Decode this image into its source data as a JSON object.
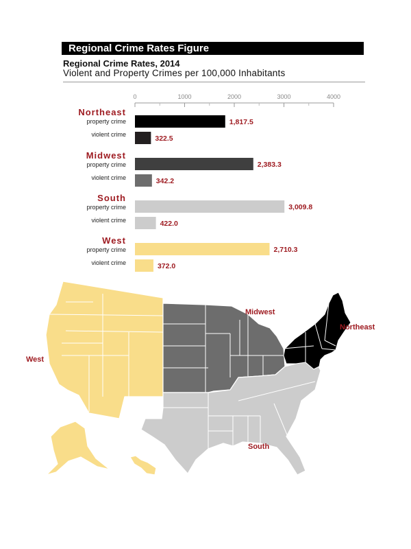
{
  "header": {
    "figure_title": "Regional Crime Rates Figure",
    "chart_title": "Regional Crime Rates, 2014",
    "chart_subtitle": "Violent and Property Crimes per 100,000 Inhabitants"
  },
  "colors": {
    "northeast_property": "#000000",
    "northeast_violent": "#231f20",
    "midwest_property": "#3f3f3f",
    "midwest_violent": "#6d6d6d",
    "south": "#cccccc",
    "west": "#f9dd8a",
    "label_red": "#9e1b21",
    "axis": "#999999"
  },
  "chart_data": {
    "type": "bar",
    "orientation": "horizontal",
    "xlim": [
      0,
      4000
    ],
    "x_ticks": [
      0,
      1000,
      2000,
      3000,
      4000
    ],
    "x_tick_labels": [
      "0",
      "1000",
      "2000",
      "3000",
      "4000"
    ],
    "groups": [
      {
        "region": "Northeast",
        "bars": [
          {
            "label": "property crime",
            "value": 1817.5,
            "value_label": "1,817.5",
            "color": "#000000"
          },
          {
            "label": "violent crime",
            "value": 322.5,
            "value_label": "322.5",
            "color": "#231f20"
          }
        ]
      },
      {
        "region": "Midwest",
        "bars": [
          {
            "label": "property crime",
            "value": 2383.3,
            "value_label": "2,383.3",
            "color": "#3f3f3f"
          },
          {
            "label": "violent crime",
            "value": 342.2,
            "value_label": "342.2",
            "color": "#6d6d6d"
          }
        ]
      },
      {
        "region": "South",
        "bars": [
          {
            "label": "property crime",
            "value": 3009.8,
            "value_label": "3,009.8",
            "color": "#cccccc"
          },
          {
            "label": "violent crime",
            "value": 422.0,
            "value_label": "422.0",
            "color": "#cccccc"
          }
        ]
      },
      {
        "region": "West",
        "bars": [
          {
            "label": "property crime",
            "value": 2710.3,
            "value_label": "2,710.3",
            "color": "#f9dd8a"
          },
          {
            "label": "violent crime",
            "value": 372.0,
            "value_label": "372.0",
            "color": "#f9dd8a"
          }
        ]
      }
    ]
  },
  "map": {
    "labels": {
      "west": "West",
      "midwest": "Midwest",
      "northeast": "Northeast",
      "south": "South"
    }
  }
}
